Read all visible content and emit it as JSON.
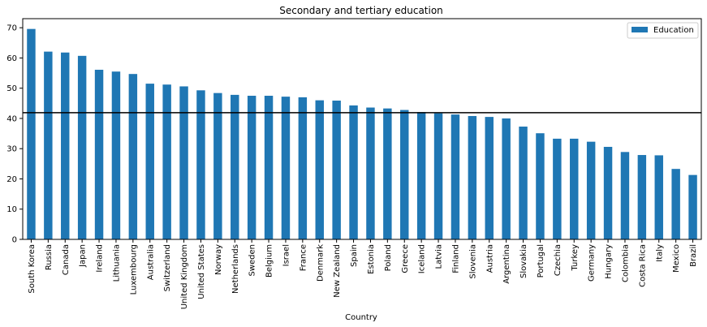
{
  "chart_data": {
    "type": "bar",
    "title": "Secondary and tertiary education",
    "xlabel": "Country",
    "ylabel": "",
    "ylim": [
      0,
      73
    ],
    "yticks": [
      0,
      10,
      20,
      30,
      40,
      50,
      60,
      70
    ],
    "legend": {
      "position": "top-right",
      "entries": [
        "Education"
      ]
    },
    "colors": {
      "bar": "#1f77b4",
      "reference_line": "#000000"
    },
    "reference_line": {
      "y": 41.9
    },
    "grid": false,
    "categories": [
      "South Korea",
      "Russia",
      "Canada",
      "Japan",
      "Ireland",
      "Lithuania",
      "Luxembourg",
      "Australia",
      "Switzerland",
      "United Kingdom",
      "United States",
      "Norway",
      "Netherlands",
      "Sweden",
      "Belgium",
      "Israel",
      "France",
      "Denmark",
      "New Zealand",
      "Spain",
      "Estonia",
      "Poland",
      "Greece",
      "Iceland",
      "Latvia",
      "Finland",
      "Slovenia",
      "Austria",
      "Argentina",
      "Slovakia",
      "Portugal",
      "Czechia",
      "Turkey",
      "Germany",
      "Hungary",
      "Colombia",
      "Costa Rica",
      "Italy",
      "Mexico",
      "Brazil"
    ],
    "series": [
      {
        "name": "Education",
        "values": [
          69.6,
          62.1,
          61.8,
          60.7,
          56.1,
          55.5,
          54.7,
          51.5,
          51.2,
          50.6,
          49.3,
          48.4,
          47.8,
          47.5,
          47.5,
          47.2,
          47.0,
          46.0,
          45.9,
          44.3,
          43.6,
          43.3,
          42.8,
          42.1,
          41.7,
          41.3,
          40.8,
          40.5,
          40.0,
          37.3,
          35.1,
          33.3,
          33.3,
          32.3,
          30.6,
          28.9,
          27.9,
          27.8,
          23.3,
          21.3
        ]
      }
    ]
  }
}
